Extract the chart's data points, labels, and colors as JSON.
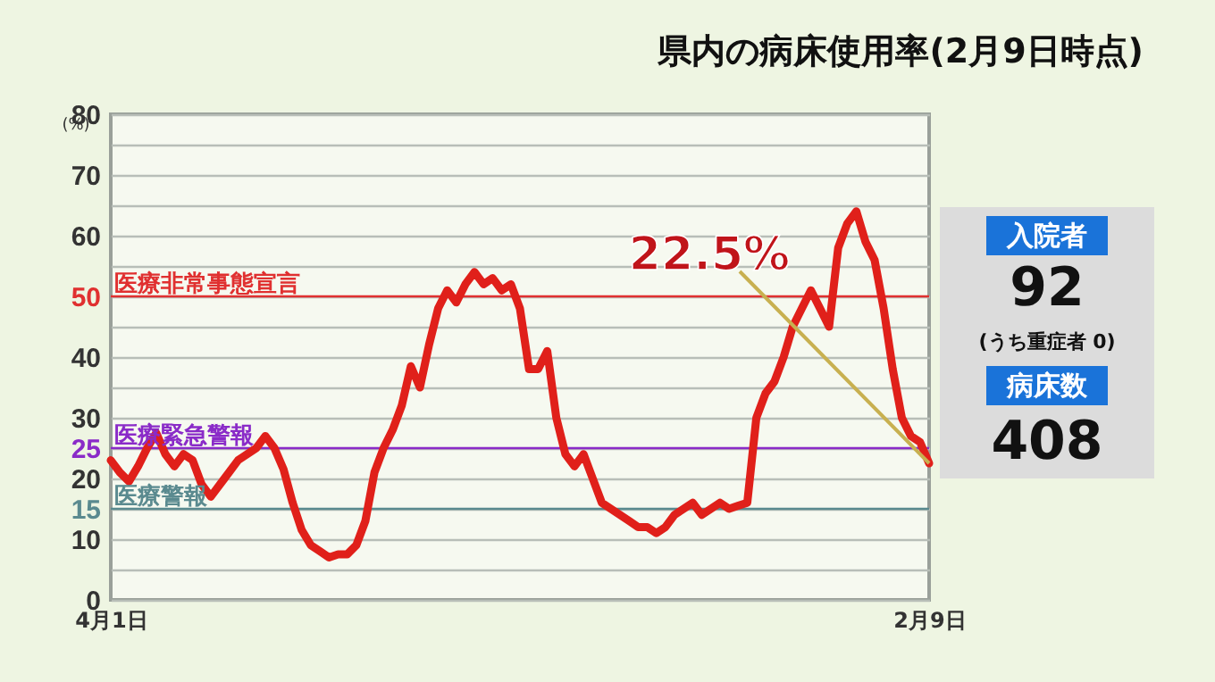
{
  "chart_data": [
    {
      "type": "line",
      "title": "県内の病床使用率(2月9日時点)",
      "ylabel": "(%)",
      "categories": [
        "4月1日",
        null,
        null,
        null,
        null,
        null,
        null,
        null,
        null,
        null,
        null,
        null,
        null,
        null,
        null,
        null,
        null,
        null,
        null,
        null,
        null,
        null,
        null,
        null,
        null,
        null,
        null,
        null,
        null,
        null,
        null,
        null,
        null,
        null,
        null,
        null,
        null,
        null,
        null,
        null,
        null,
        null,
        null,
        null,
        null,
        null,
        null,
        null,
        null,
        null,
        null,
        null,
        null,
        null,
        null,
        null,
        null,
        null,
        null,
        null,
        null,
        null,
        null,
        null,
        null,
        null,
        null,
        null,
        null,
        null,
        null,
        null,
        null,
        null,
        null,
        null,
        null,
        null,
        null,
        null,
        null,
        null,
        null,
        null,
        null,
        null,
        null,
        null,
        null,
        null,
        "2月9日"
      ],
      "series": [
        {
          "color": "#e0201a",
          "values": [
            23,
            21,
            19.5,
            22,
            25,
            27.5,
            24,
            22,
            24,
            23,
            19,
            17,
            19,
            21,
            23,
            24,
            25,
            27,
            25,
            21.5,
            16,
            11.5,
            9,
            8,
            7,
            7.5,
            7.5,
            9,
            13,
            21,
            25,
            28,
            32,
            38.5,
            35,
            42,
            48,
            51,
            49,
            52,
            54,
            52,
            53,
            51,
            52,
            48,
            38,
            38,
            41,
            30,
            24,
            22,
            24,
            20,
            16,
            15,
            14,
            13,
            12,
            12,
            11,
            12,
            14,
            15,
            16,
            14,
            15,
            16,
            15,
            15.5,
            16,
            30,
            34,
            36,
            40,
            45,
            48,
            51,
            48,
            45,
            58,
            62,
            64,
            59,
            56,
            48,
            38,
            30,
            27,
            26,
            22.5
          ]
        }
      ],
      "ylim": [
        0,
        80
      ],
      "yticks": [
        0,
        {
          "value": 5,
          "label": null
        },
        10,
        15,
        20,
        25,
        30,
        {
          "value": 35,
          "label": null
        },
        40,
        {
          "value": 45,
          "label": null
        },
        50,
        {
          "value": 55,
          "label": null
        },
        60,
        {
          "value": 65,
          "label": null
        },
        70,
        {
          "value": 75,
          "label": null
        },
        80
      ],
      "grid": "y",
      "ref_lines": [
        {
          "axis": "y",
          "value": 50,
          "label": "医療非常事態宣言",
          "color": "#e03030"
        },
        {
          "axis": "y",
          "value": 25,
          "label": "医療緊急警報",
          "color": "#8a2bc8"
        },
        {
          "axis": "y",
          "value": 15,
          "label": "医療警報",
          "color": "#5a8a8f"
        }
      ],
      "annotations": [
        {
          "text": "22.5%",
          "x": "2月9日",
          "y": 22.5
        }
      ]
    },
    {
      "type": "other",
      "annotations": [
        "入院者",
        "92",
        "(うち重症者 0)",
        "病床数",
        "408"
      ]
    }
  ]
}
